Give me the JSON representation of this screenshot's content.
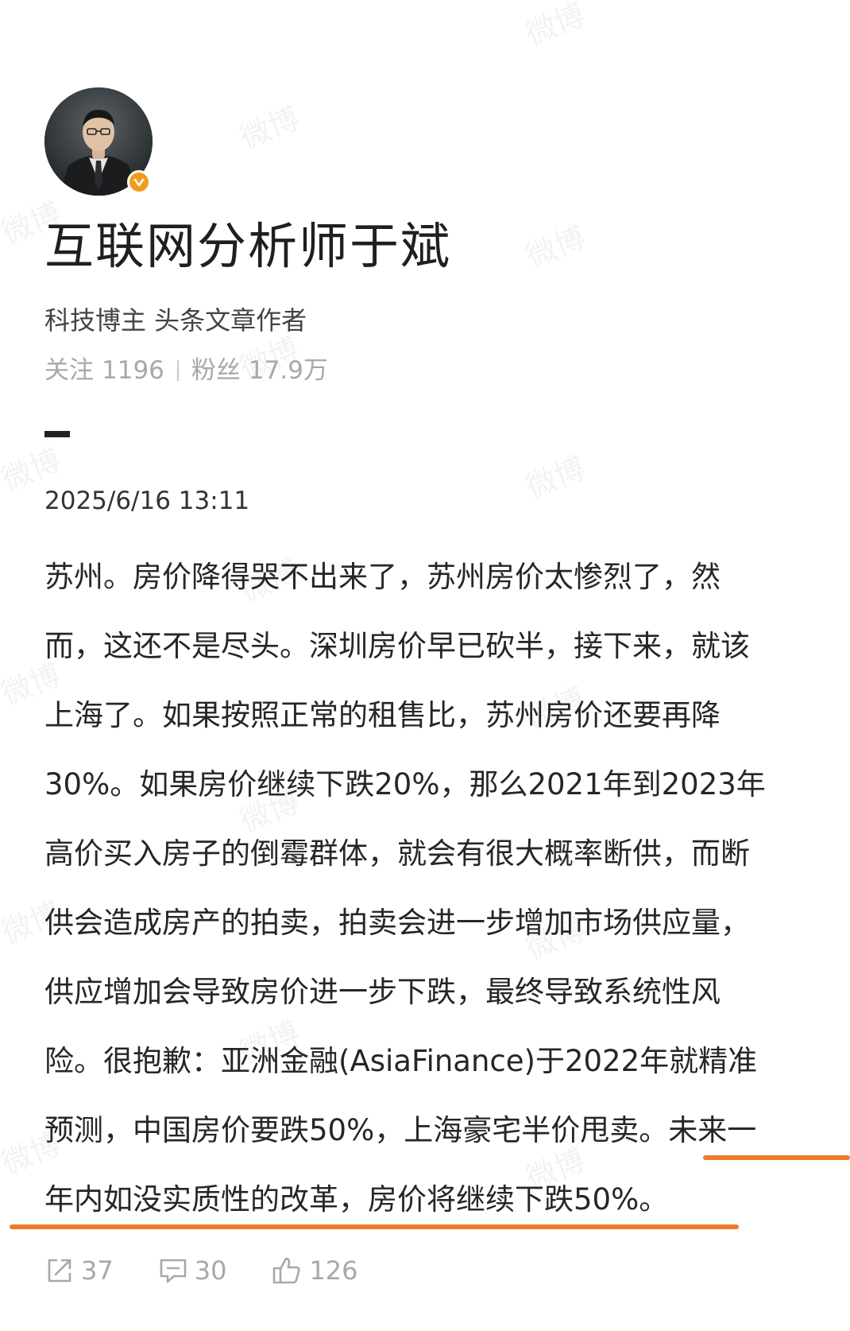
{
  "watermark": "微博",
  "profile": {
    "name": "互联网分析师于斌",
    "subtitle": "科技博主 头条文章作者",
    "following_label": "关注",
    "following_count": "1196",
    "followers_label": "粉丝",
    "followers_count": "17.9万"
  },
  "post": {
    "timestamp": "2025/6/16 13:11",
    "lines": [
      "苏州。房价降得哭不出来了，苏州房价太惨烈了，然",
      "而，这还不是尽头。深圳房价早已砍半，接下来，就该",
      "上海了。如果按照正常的租售比，苏州房价还要再降",
      "30%。如果房价继续下跌20%，那么2021年到2023年",
      "高价买入房子的倒霉群体，就会有很大概率断供，而断",
      "供会造成房产的拍卖，拍卖会进一步增加市场供应量，",
      "供应增加会导致房价进一步下跌，最终导致系统性风",
      "险。很抱歉：亚洲金融(AsiaFinance)于2022年就精准",
      "预测，中国房价要跌50%，上海豪宅半价甩卖。未来一",
      "年内如没实质性的改革，房价将继续下跌50%。"
    ]
  },
  "actions": {
    "share_count": "37",
    "comment_count": "30",
    "like_count": "126"
  },
  "colors": {
    "highlight_underline": "#f07a2c",
    "verified_badge": "#f39a1e"
  },
  "icons": [
    "share-icon",
    "comment-icon",
    "like-icon",
    "verified-badge-icon"
  ]
}
